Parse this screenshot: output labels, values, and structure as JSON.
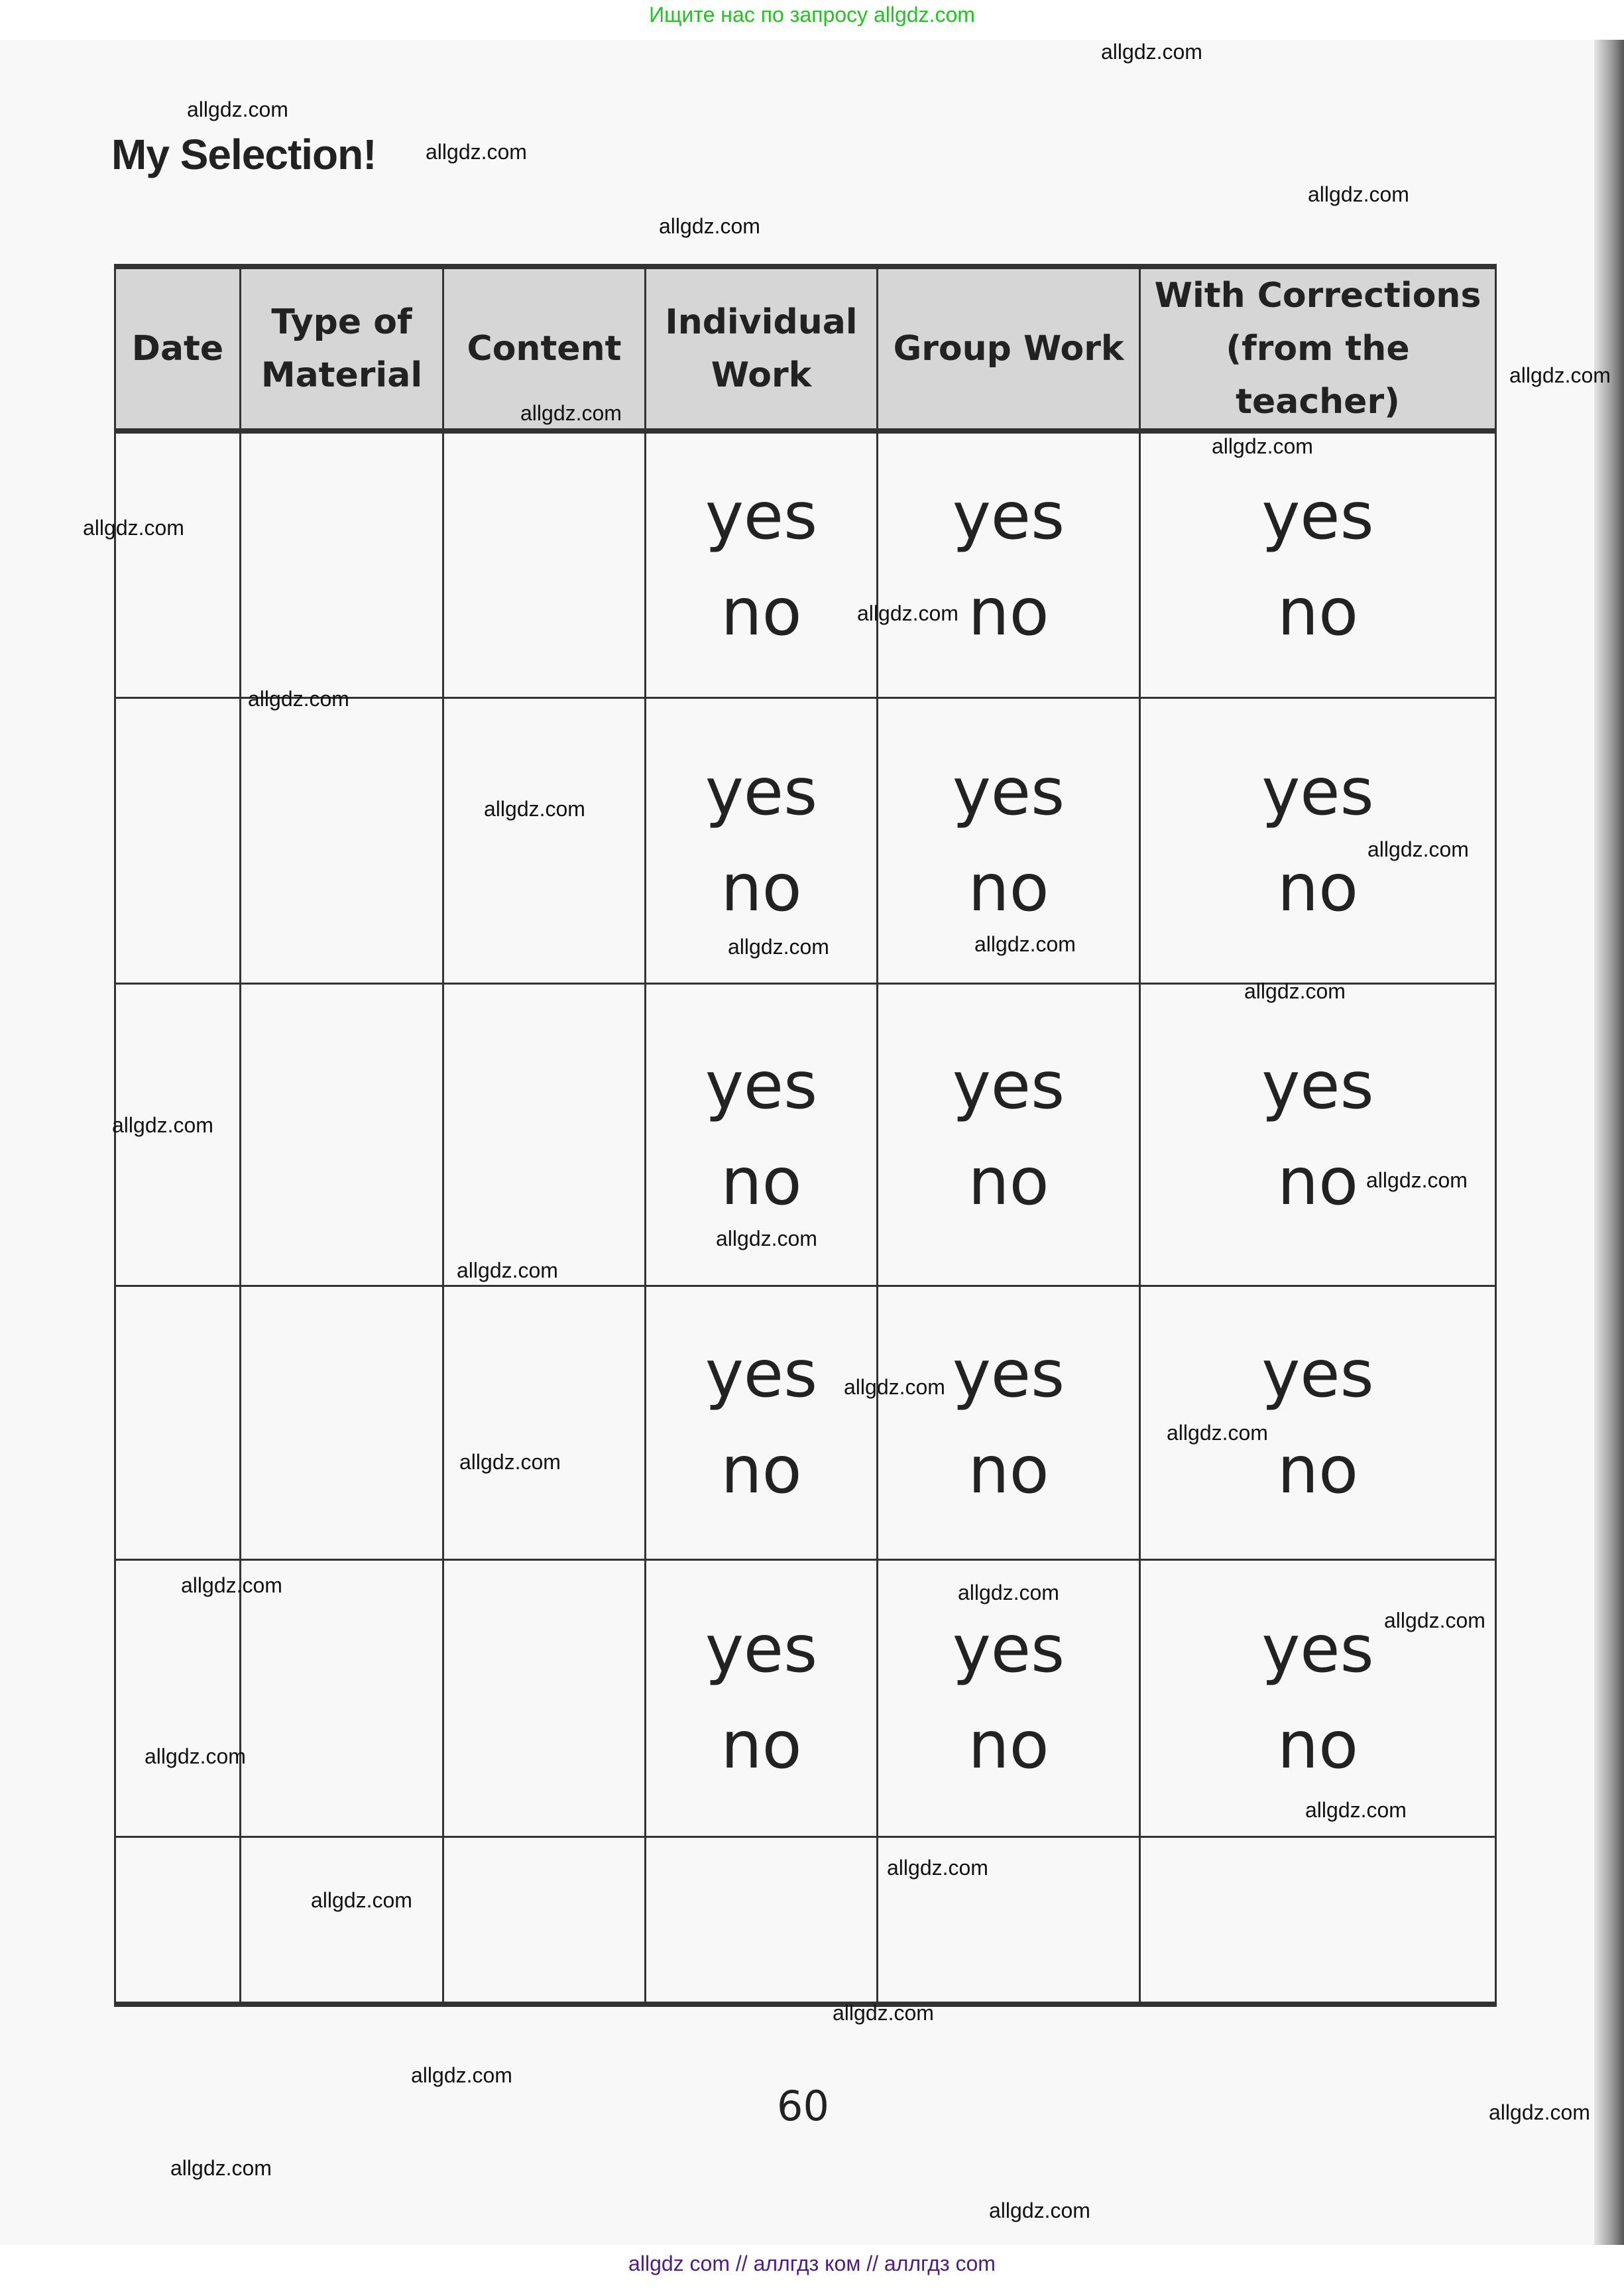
{
  "banner_top": "Ищите нас по запросу allgdz.com",
  "banner_bottom": "allgdz com  //  аллгдз ком  //  аллгдз com",
  "title": "My Selection!",
  "table": {
    "headers": [
      "Date",
      "Type of Material",
      "Content",
      "Individual Work",
      "Group Work",
      "With Corrections (from the teacher)"
    ],
    "yes_label": "yes",
    "no_label": "no",
    "rows_with_options": 5,
    "empty_rows": 1
  },
  "page_number": "60",
  "watermark": "allgdz.com"
}
